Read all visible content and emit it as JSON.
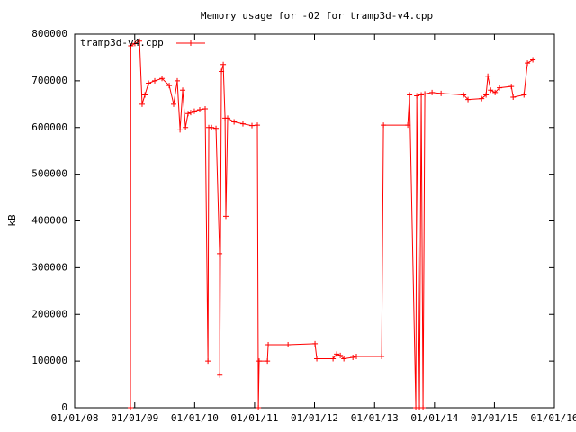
{
  "chart_data": {
    "type": "line",
    "title": "Memory usage for -O2 for tramp3d-v4.cpp",
    "y_label": "kB",
    "legend": "top-left",
    "series": [
      {
        "name": "tramp3d-v4.cpp",
        "color": "#ff0000",
        "x": [
          "2008-12-06",
          "2008-12-08",
          "2009-01-02",
          "2009-01-30",
          "2009-02-15",
          "2009-03-04",
          "2009-03-26",
          "2009-05-03",
          "2009-06-16",
          "2009-07-30",
          "2009-08-26",
          "2009-09-17",
          "2009-10-04",
          "2009-10-20",
          "2009-11-06",
          "2009-11-22",
          "2009-12-08",
          "2009-12-30",
          "2010-02-01",
          "2010-03-06",
          "2010-03-23",
          "2010-03-28",
          "2010-04-14",
          "2010-05-11",
          "2010-06-02",
          "2010-06-03",
          "2010-06-13",
          "2010-06-24",
          "2010-07-05",
          "2010-07-10",
          "2010-07-21",
          "2010-08-29",
          "2010-10-22",
          "2010-12-16",
          "2011-01-18",
          "2011-01-24",
          "2011-01-29",
          "2011-03-20",
          "2011-03-25",
          "2011-07-24",
          "2012-01-04",
          "2012-01-15",
          "2012-04-23",
          "2012-05-15",
          "2012-06-06",
          "2012-06-28",
          "2012-08-22",
          "2012-09-12",
          "2013-02-13",
          "2013-02-24",
          "2013-07-22",
          "2013-08-02",
          "2013-09-09",
          "2013-09-15",
          "2013-10-01",
          "2013-10-12",
          "2013-10-23",
          "2013-11-03",
          "2013-12-17",
          "2014-02-10",
          "2014-06-27",
          "2014-07-24",
          "2014-10-15",
          "2014-11-11",
          "2014-11-22",
          "2014-12-09",
          "2015-01-05",
          "2015-02-01",
          "2015-04-14",
          "2015-04-25",
          "2015-06-30",
          "2015-07-21",
          "2015-08-23"
        ],
        "values": [
          0,
          775000,
          780000,
          785000,
          650000,
          670000,
          695000,
          700000,
          705000,
          690000,
          650000,
          700000,
          595000,
          680000,
          600000,
          630000,
          632000,
          635000,
          638000,
          640000,
          100000,
          600000,
          600000,
          598000,
          330000,
          70000,
          720000,
          735000,
          620000,
          410000,
          620000,
          612000,
          608000,
          604000,
          605000,
          0,
          100000,
          100000,
          135000,
          135000,
          137000,
          105000,
          105000,
          115000,
          112000,
          105000,
          108000,
          110000,
          110000,
          605000,
          605000,
          670000,
          0,
          668000,
          0,
          670000,
          0,
          672000,
          675000,
          673000,
          670000,
          660000,
          662000,
          670000,
          710000,
          680000,
          675000,
          685000,
          688000,
          665000,
          670000,
          738000,
          745000
        ]
      }
    ],
    "xlim": [
      "2008-01-01",
      "2016-01-01"
    ],
    "xticks": [
      {
        "value": "2008-01-01",
        "label": "01/01/08"
      },
      {
        "value": "2009-01-01",
        "label": "01/01/09"
      },
      {
        "value": "2010-01-01",
        "label": "01/01/10"
      },
      {
        "value": "2011-01-01",
        "label": "01/01/11"
      },
      {
        "value": "2012-01-01",
        "label": "01/01/12"
      },
      {
        "value": "2013-01-01",
        "label": "01/01/13"
      },
      {
        "value": "2014-01-01",
        "label": "01/01/14"
      },
      {
        "value": "2015-01-01",
        "label": "01/01/15"
      },
      {
        "value": "2016-01-01",
        "label": "01/01/16"
      }
    ],
    "ylim": [
      0,
      800000
    ],
    "yticks": [
      0,
      100000,
      200000,
      300000,
      400000,
      500000,
      600000,
      700000,
      800000
    ]
  }
}
